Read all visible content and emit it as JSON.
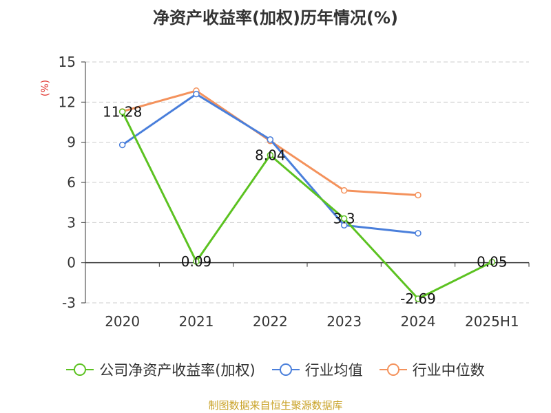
{
  "chart_data": {
    "type": "line",
    "title": "净资产收益率(加权)历年情况(%)",
    "ylabel": "(%)",
    "xlabel": "",
    "categories": [
      "2020",
      "2021",
      "2022",
      "2023",
      "2024",
      "2025H1"
    ],
    "ylim": [
      -3,
      15
    ],
    "yticks": [
      -3,
      0,
      3,
      6,
      9,
      12,
      15
    ],
    "grid": true,
    "legend_position": "bottom",
    "series": [
      {
        "name": "公司净资产收益率(加权)",
        "color": "#5cc221",
        "values": [
          11.28,
          0.09,
          8.04,
          3.3,
          -2.69,
          0.05
        ],
        "labels": [
          "11.28",
          "0.09",
          "8.04",
          "3.3",
          "-2.69",
          "0.05"
        ]
      },
      {
        "name": "行业均值",
        "color": "#4a7fdb",
        "values": [
          8.8,
          12.6,
          9.2,
          2.8,
          2.2,
          null
        ]
      },
      {
        "name": "行业中位数",
        "color": "#f4925c",
        "values": [
          11.3,
          12.85,
          9.1,
          5.4,
          5.05,
          null
        ]
      }
    ]
  },
  "source": "制图数据来自恒生聚源数据库"
}
